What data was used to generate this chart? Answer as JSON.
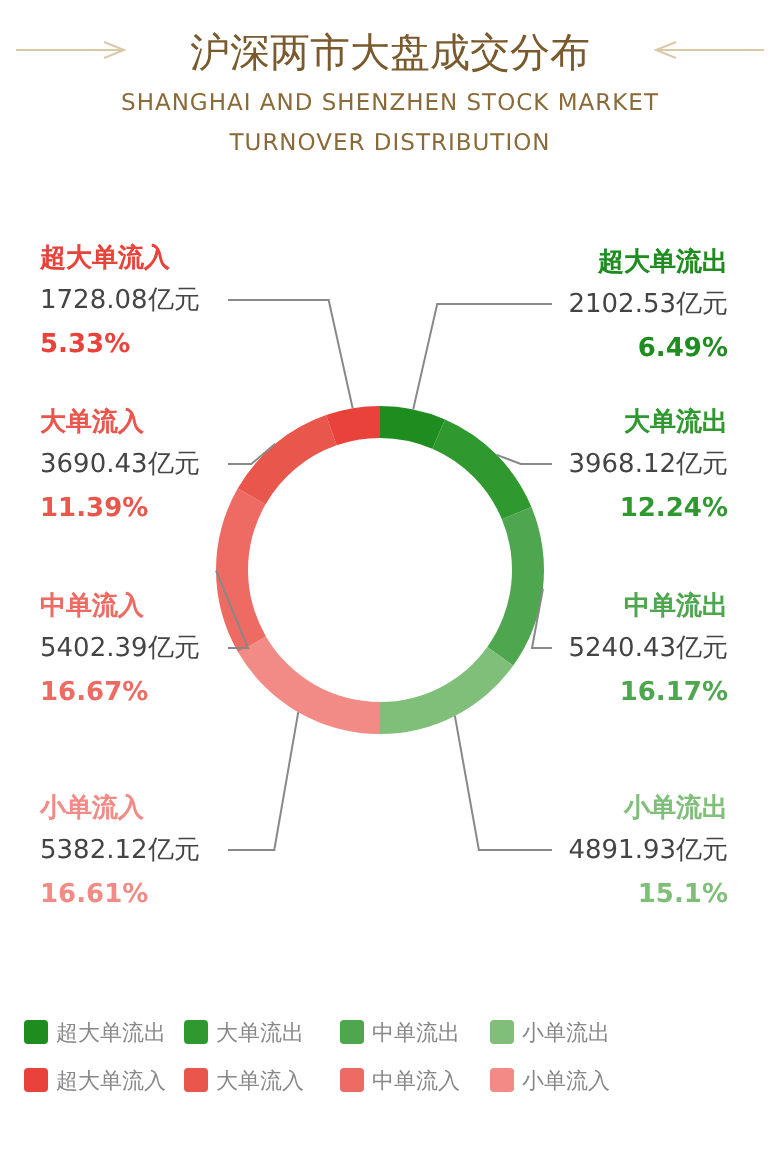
{
  "chart_data": {
    "type": "donut",
    "title": "沪深两市大盘成交分布",
    "subtitle": "SHANGHAI AND SHENZHEN STOCK MARKET TURNOVER DISTRIBUTION",
    "categories": [
      "超大单流出",
      "大单流出",
      "中单流出",
      "小单流出",
      "小单流入",
      "中单流入",
      "大单流入",
      "超大单流入"
    ],
    "values": [
      2102.53,
      3968.12,
      5240.43,
      4891.93,
      5382.12,
      5402.39,
      3690.43,
      1728.08
    ],
    "colors": [
      "#1e8c1e",
      "#2f9930",
      "#4ea64e",
      "#7fbf7a",
      "#f28a85",
      "#ee6b64",
      "#e9564c",
      "#e8423a"
    ],
    "value_labels": [
      "2102.53亿元\n6.49%",
      "3968.12亿元\n12.24%",
      "5240.43亿元\n16.17%",
      "4891.93亿元\n15.1%",
      "5382.12亿元\n16.61%",
      "5402.39亿元\n16.67%",
      "3690.43亿元\n11.39%",
      "1728.08亿元\n5.33%"
    ],
    "legend": "bottom"
  }
}
